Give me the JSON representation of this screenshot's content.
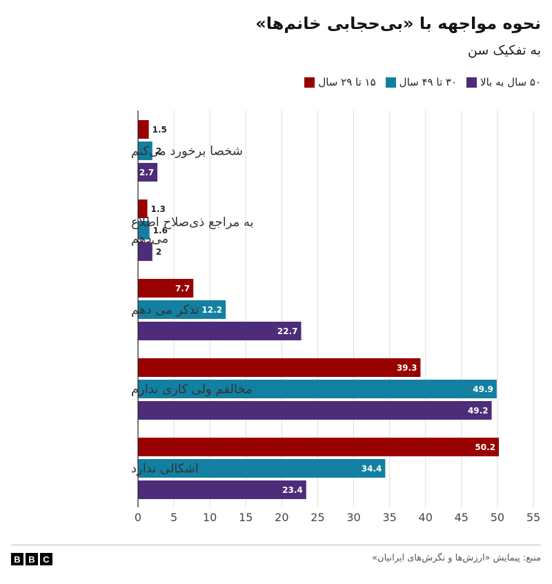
{
  "header": {
    "title": "نحوه مواجهه با «بی‌حجابی خانم‌ها»",
    "subtitle": "به تفکیک سن"
  },
  "legend": [
    {
      "label": "۱۵ تا ۲۹ سال",
      "color": "#990000"
    },
    {
      "label": "۳۰ تا ۴۹ سال",
      "color": "#1380A1"
    },
    {
      "label": "۵۰ سال به بالا",
      "color": "#4D2C7A"
    }
  ],
  "footer": {
    "source": "منبع: پیمایش «ارزش‌ها و نگرش‌های ایرانیان»",
    "logo": [
      "B",
      "B",
      "C"
    ]
  },
  "chart_data": {
    "type": "bar",
    "orientation": "horizontal",
    "categories": [
      "شخصا برخورد می‌کنم",
      "به مراجع ذی‌صلاح اطلاع می‌دهم",
      "تذکر می دهم",
      "مخالفم ولی کاری ندارم",
      "اشکالی ندارد"
    ],
    "series": [
      {
        "name": "۱۵ تا ۲۹ سال",
        "color": "#990000",
        "values": [
          1.5,
          1.3,
          7.7,
          39.3,
          50.2
        ]
      },
      {
        "name": "۳۰ تا ۴۹ سال",
        "color": "#1380A1",
        "values": [
          2,
          1.6,
          12.2,
          49.9,
          34.4
        ]
      },
      {
        "name": "۵۰ سال به بالا",
        "color": "#4D2C7A",
        "values": [
          2.7,
          2,
          22.7,
          49.2,
          23.4
        ]
      }
    ],
    "xlim": [
      0,
      55
    ],
    "xticks": [
      0,
      5,
      10,
      15,
      20,
      25,
      30,
      35,
      40,
      45,
      50,
      55
    ],
    "grid": true
  }
}
